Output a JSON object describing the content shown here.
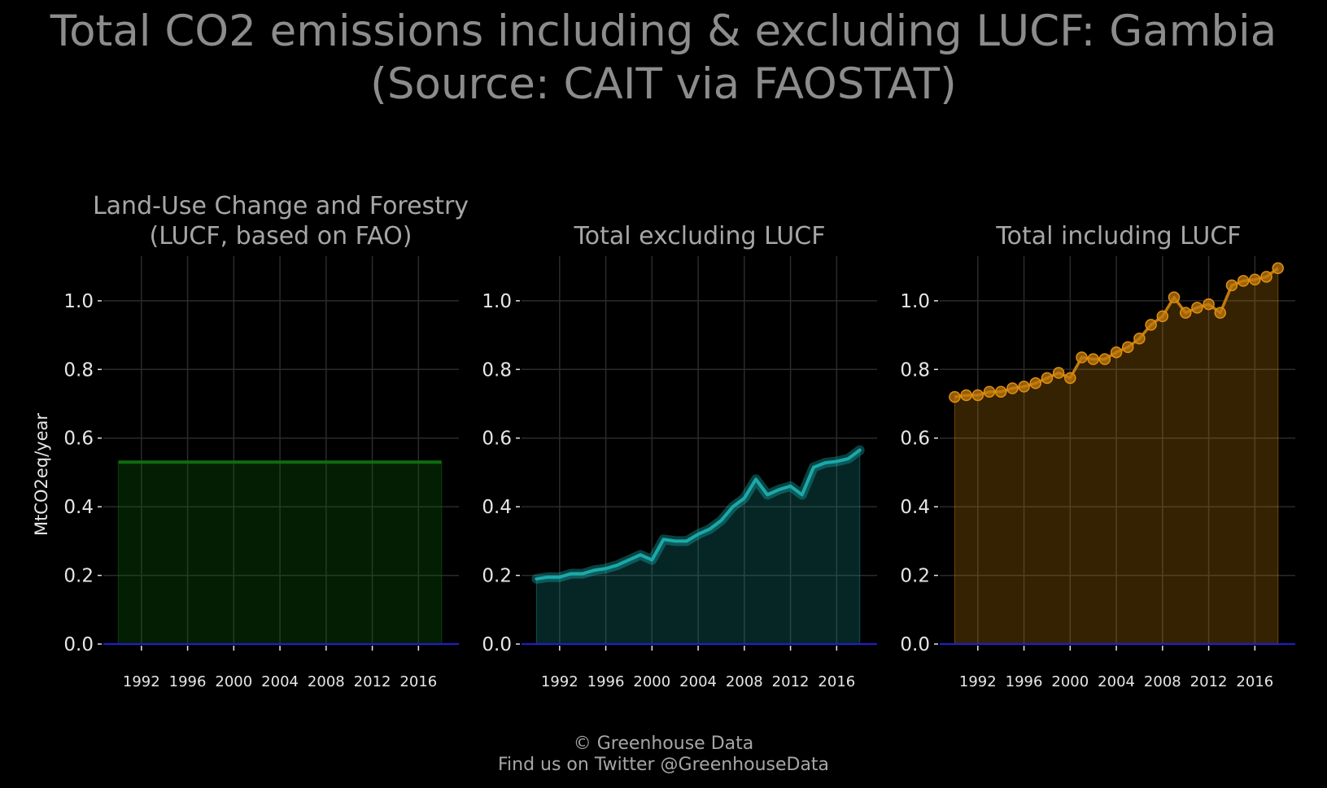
{
  "title": {
    "line1": "Total CO2 emissions including & excluding LUCF: Gambia",
    "line2": "(Source: CAIT via FAOSTAT)"
  },
  "footer": {
    "line1": "© Greenhouse Data",
    "line2": "Find us on Twitter @GreenhouseData"
  },
  "colors": {
    "background": "#000000",
    "title_text": "#8c8c8c",
    "panel_text": "#a6a6a6",
    "tick_text": "#e6e6e6",
    "grid": "#2b2b2b",
    "zero_line": "#1f1fd6",
    "lucf": "#0e6b0e",
    "excl": "#168a8a",
    "incl": "#c07a0c"
  },
  "chart_data": [
    {
      "type": "area",
      "title_line1": "Land-Use Change and Forestry",
      "title_line2": "(LUCF, based on FAO)",
      "ylabel": "MtCO2eq/year",
      "ylim": [
        0,
        1.13
      ],
      "yticks": [
        0.0,
        0.2,
        0.4,
        0.6,
        0.8,
        1.0
      ],
      "ytick_labels": [
        "0.0",
        "0.2",
        "0.4",
        "0.6",
        "0.8",
        "1.0"
      ],
      "xticks": [
        1992,
        1996,
        2000,
        2004,
        2008,
        2012,
        2016
      ],
      "xtick_labels": [
        "1992",
        "1996",
        "2000",
        "2004",
        "2008",
        "2012",
        "2016"
      ],
      "xlim": [
        1988.7,
        2019.5
      ],
      "grid": true,
      "color": "#0e6b0e",
      "style": "line",
      "x": [
        1990,
        1991,
        1992,
        1993,
        1994,
        1995,
        1996,
        1997,
        1998,
        1999,
        2000,
        2001,
        2002,
        2003,
        2004,
        2005,
        2006,
        2007,
        2008,
        2009,
        2010,
        2011,
        2012,
        2013,
        2014,
        2015,
        2016,
        2017,
        2018
      ],
      "values": [
        0.53,
        0.53,
        0.53,
        0.53,
        0.53,
        0.53,
        0.53,
        0.53,
        0.53,
        0.53,
        0.53,
        0.53,
        0.53,
        0.53,
        0.53,
        0.53,
        0.53,
        0.53,
        0.53,
        0.53,
        0.53,
        0.53,
        0.53,
        0.53,
        0.53,
        0.53,
        0.53,
        0.53,
        0.53
      ]
    },
    {
      "type": "area",
      "title_line1": "Total excluding LUCF",
      "title_line2": "",
      "ylabel": "",
      "ylim": [
        0,
        1.13
      ],
      "yticks": [
        0.0,
        0.2,
        0.4,
        0.6,
        0.8,
        1.0
      ],
      "ytick_labels": [
        "0.0",
        "0.2",
        "0.4",
        "0.6",
        "0.8",
        "1.0"
      ],
      "xticks": [
        1992,
        1996,
        2000,
        2004,
        2008,
        2012,
        2016
      ],
      "xtick_labels": [
        "1992",
        "1996",
        "2000",
        "2004",
        "2008",
        "2012",
        "2016"
      ],
      "xlim": [
        1988.7,
        2019.5
      ],
      "grid": true,
      "color": "#168a8a",
      "style": "glow",
      "x": [
        1990,
        1991,
        1992,
        1993,
        1994,
        1995,
        1996,
        1997,
        1998,
        1999,
        2000,
        2001,
        2002,
        2003,
        2004,
        2005,
        2006,
        2007,
        2008,
        2009,
        2010,
        2011,
        2012,
        2013,
        2014,
        2015,
        2016,
        2017,
        2018
      ],
      "values": [
        0.19,
        0.195,
        0.195,
        0.205,
        0.205,
        0.215,
        0.22,
        0.23,
        0.245,
        0.26,
        0.245,
        0.305,
        0.3,
        0.3,
        0.32,
        0.335,
        0.36,
        0.4,
        0.425,
        0.48,
        0.435,
        0.45,
        0.46,
        0.435,
        0.515,
        0.528,
        0.532,
        0.54,
        0.565
      ]
    },
    {
      "type": "area",
      "title_line1": "Total including LUCF",
      "title_line2": "",
      "ylabel": "",
      "ylim": [
        0,
        1.13
      ],
      "yticks": [
        0.0,
        0.2,
        0.4,
        0.6,
        0.8,
        1.0
      ],
      "ytick_labels": [
        "0.0",
        "0.2",
        "0.4",
        "0.6",
        "0.8",
        "1.0"
      ],
      "xticks": [
        1992,
        1996,
        2000,
        2004,
        2008,
        2012,
        2016
      ],
      "xtick_labels": [
        "1992",
        "1996",
        "2000",
        "2004",
        "2008",
        "2012",
        "2016"
      ],
      "xlim": [
        1988.7,
        2019.5
      ],
      "grid": true,
      "color": "#c07a0c",
      "style": "markers",
      "x": [
        1990,
        1991,
        1992,
        1993,
        1994,
        1995,
        1996,
        1997,
        1998,
        1999,
        2000,
        2001,
        2002,
        2003,
        2004,
        2005,
        2006,
        2007,
        2008,
        2009,
        2010,
        2011,
        2012,
        2013,
        2014,
        2015,
        2016,
        2017,
        2018
      ],
      "values": [
        0.72,
        0.725,
        0.725,
        0.735,
        0.735,
        0.745,
        0.75,
        0.76,
        0.775,
        0.79,
        0.775,
        0.835,
        0.83,
        0.83,
        0.85,
        0.865,
        0.89,
        0.93,
        0.955,
        1.01,
        0.965,
        0.98,
        0.99,
        0.965,
        1.045,
        1.058,
        1.062,
        1.07,
        1.095
      ]
    }
  ]
}
